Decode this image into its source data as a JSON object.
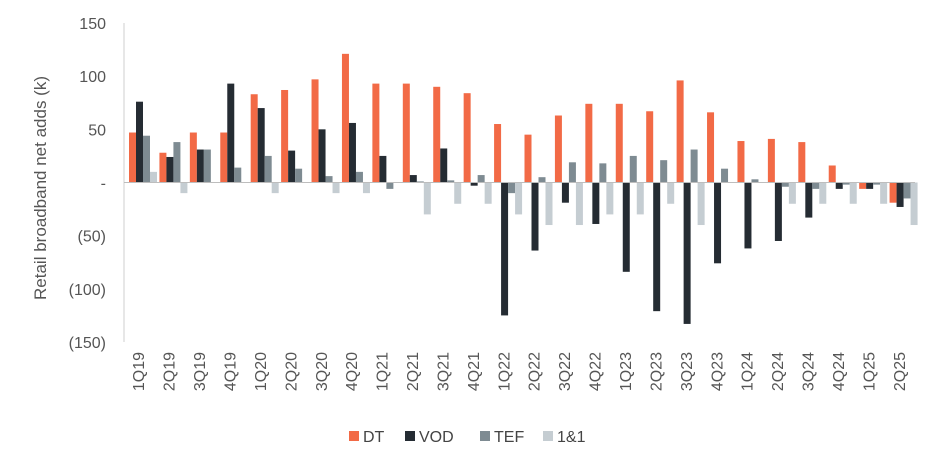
{
  "chart_data": {
    "type": "bar",
    "ylabel": "Retail broadband net adds (k)",
    "xlabel": "",
    "ylim": [
      -150,
      150
    ],
    "yticks": [
      150,
      100,
      50,
      0,
      -50,
      -100,
      -150
    ],
    "ytick_labels": [
      "150",
      "100",
      "50",
      "-",
      "(50)",
      "(100)",
      "(150)"
    ],
    "grid": false,
    "legend_position": "bottom-center",
    "categories": [
      "1Q19",
      "2Q19",
      "3Q19",
      "4Q19",
      "1Q20",
      "2Q20",
      "3Q20",
      "4Q20",
      "1Q21",
      "2Q21",
      "3Q21",
      "4Q21",
      "1Q22",
      "2Q22",
      "3Q22",
      "4Q22",
      "1Q23",
      "2Q23",
      "3Q23",
      "4Q23",
      "1Q24",
      "2Q24",
      "3Q24",
      "4Q24",
      "1Q25",
      "2Q25"
    ],
    "series": [
      {
        "name": "DT",
        "color": "#f26a46",
        "values": [
          47,
          28,
          47,
          47,
          83,
          87,
          97,
          121,
          93,
          93,
          90,
          84,
          55,
          45,
          63,
          74,
          74,
          67,
          96,
          66,
          39,
          41,
          38,
          16,
          -6,
          -19
        ]
      },
      {
        "name": "VOD",
        "color": "#252c33",
        "values": [
          76,
          24,
          31,
          93,
          70,
          30,
          50,
          56,
          25,
          7,
          32,
          -3,
          -125,
          -64,
          -19,
          -39,
          -84,
          -121,
          -133,
          -76,
          -62,
          -55,
          -33,
          -6,
          -6,
          -23
        ]
      },
      {
        "name": "TEF",
        "color": "#7e8b92",
        "values": [
          44,
          38,
          31,
          14,
          25,
          13,
          6,
          10,
          -6,
          1,
          2,
          7,
          -10,
          5,
          19,
          18,
          25,
          21,
          31,
          13,
          3,
          -4,
          -6,
          -2,
          -2,
          -15
        ]
      },
      {
        "name": "1&1",
        "color": "#c5cdd2",
        "values": [
          10,
          -10,
          0,
          0,
          -10,
          0,
          -10,
          -10,
          0,
          -30,
          -20,
          -20,
          -30,
          -40,
          -40,
          -30,
          -30,
          -20,
          -40,
          0,
          0,
          -20,
          -20,
          -20,
          -20,
          -40
        ]
      }
    ]
  }
}
